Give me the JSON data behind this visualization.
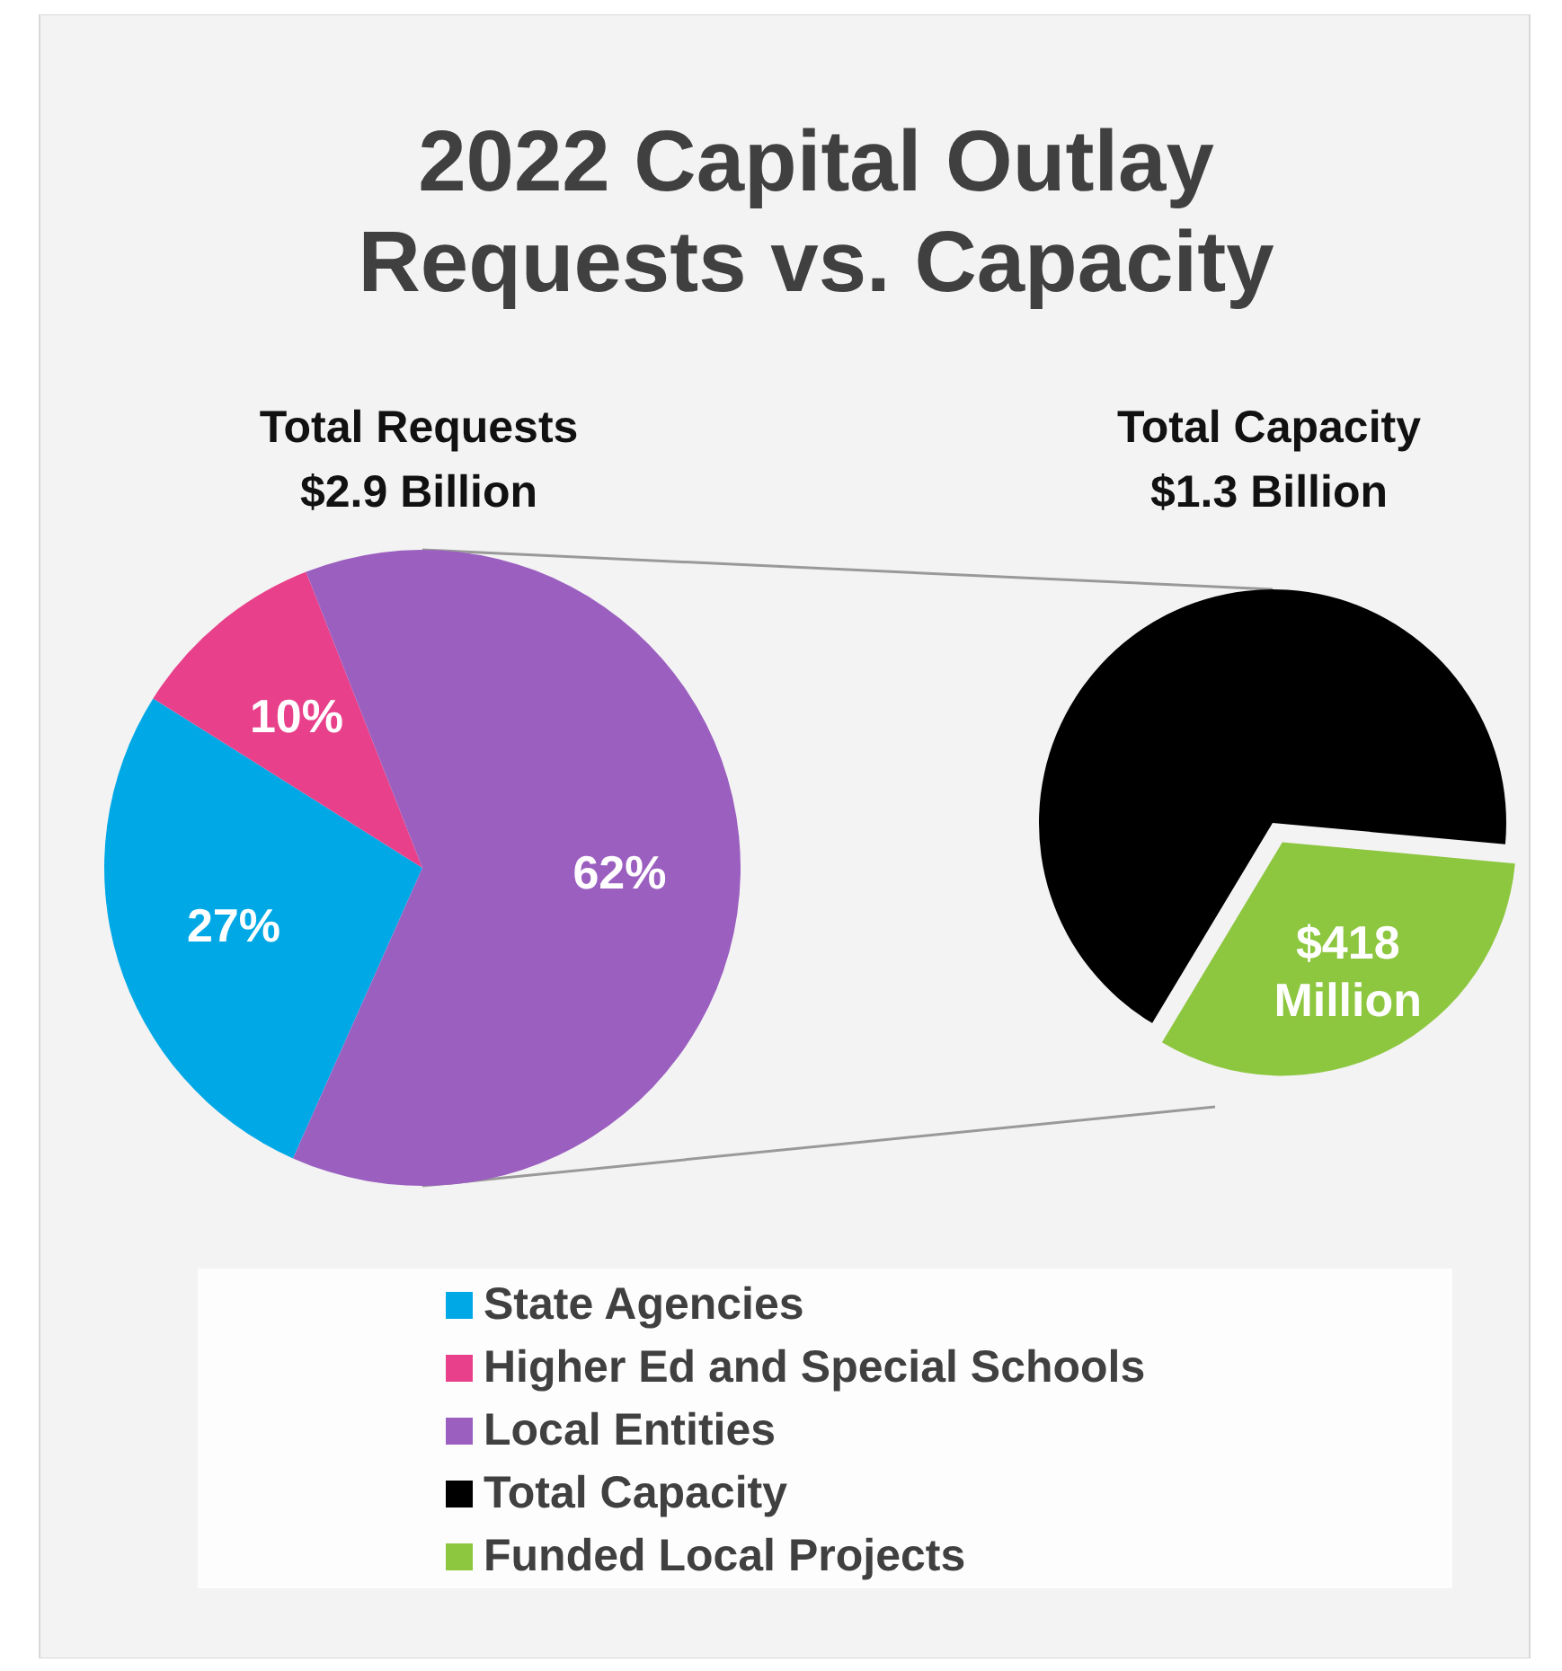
{
  "chart_data": [
    {
      "type": "pie",
      "title": "2022 Capital Outlay\nRequests vs. Capacity",
      "subtitle": "Total Requests\n$2.9 Billion",
      "categories": [
        "State Agencies",
        "Higher Ed and Special Schools",
        "Local Entities"
      ],
      "values": [
        27,
        10,
        62
      ],
      "value_labels": [
        "27%",
        "10%",
        "62%"
      ],
      "colors": [
        "#00a9e6",
        "#e8408a",
        "#9b5fc0"
      ],
      "legend": "bottom"
    },
    {
      "type": "pie",
      "title": "Total Capacity\n$1.3 Billion",
      "categories": [
        "Total Capacity",
        "Funded Local Projects"
      ],
      "values": [
        882,
        418
      ],
      "value_labels": [
        null,
        "$418\nMillion"
      ],
      "colors": [
        "#000000",
        "#8dc63f"
      ],
      "legend": "bottom"
    }
  ]
}
